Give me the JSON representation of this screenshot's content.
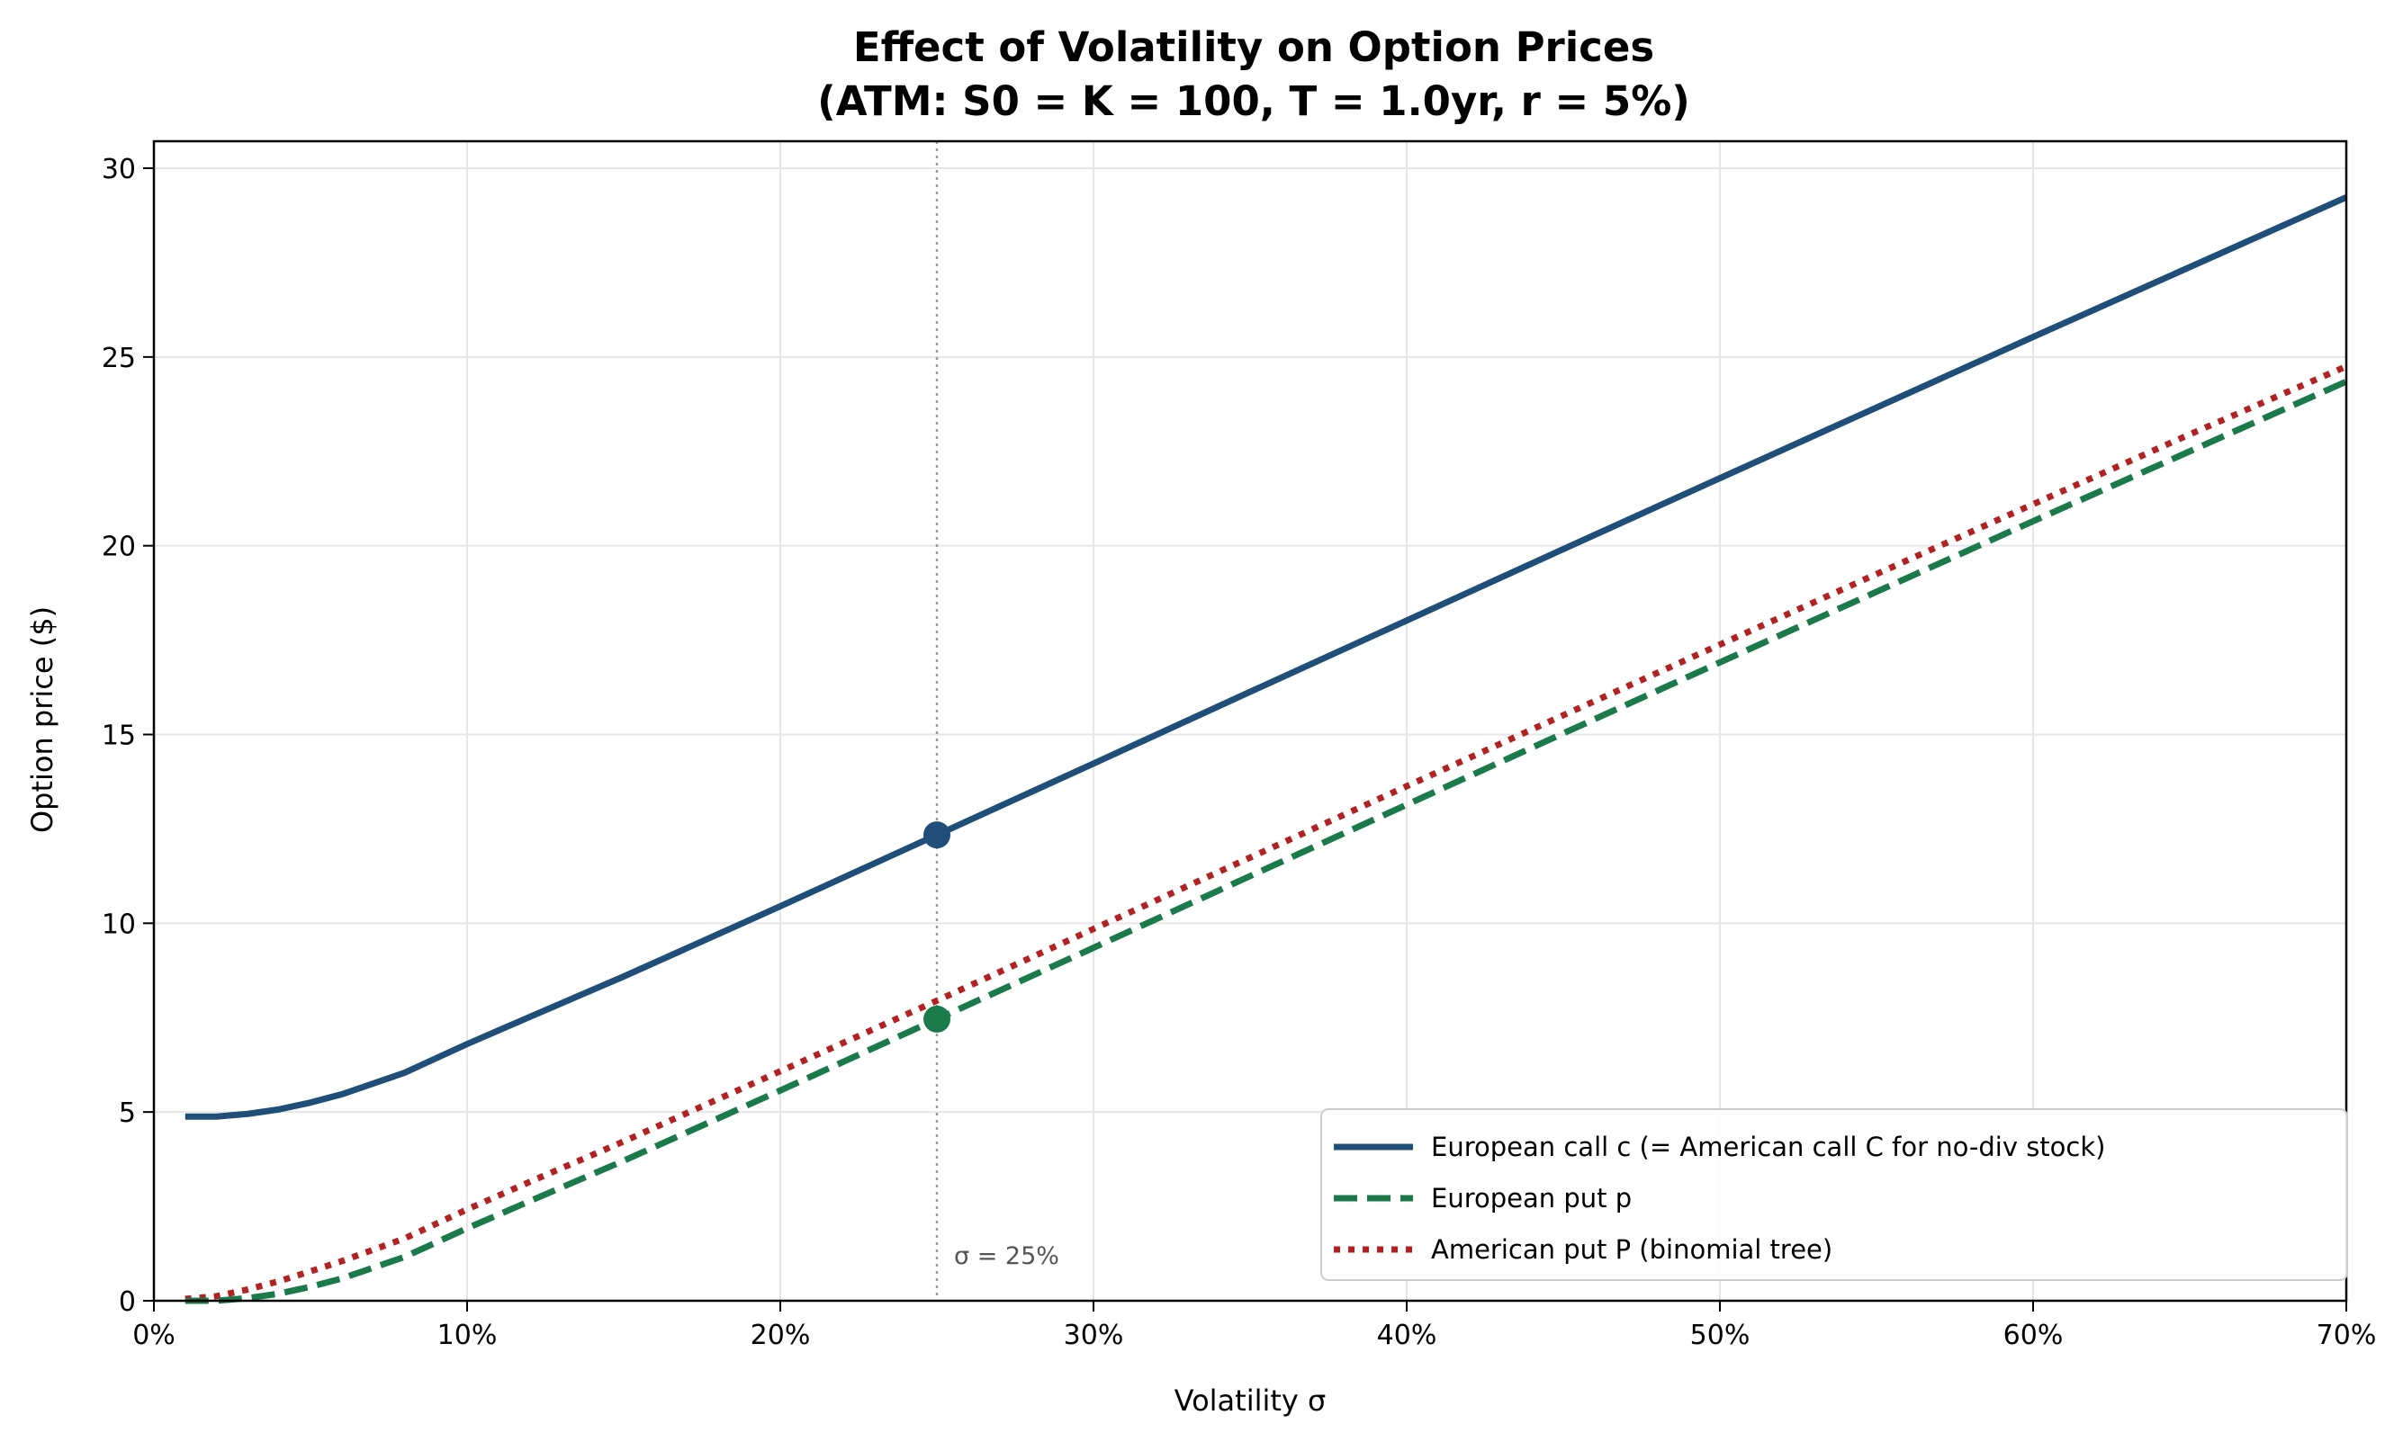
{
  "chart_data": {
    "type": "line",
    "title": "Effect of Volatility on Option Prices",
    "subtitle": "(ATM: S0 = K = 100,  T = 1.0yr,  r = 5%)",
    "xlabel": "Volatility  σ",
    "ylabel": "Option price ($)",
    "xlim": [
      0,
      70
    ],
    "ylim": [
      0,
      30
    ],
    "x_unit": "%",
    "grid": true,
    "legend_placement": "lower-right",
    "xticks": [
      "0%",
      "10%",
      "20%",
      "30%",
      "40%",
      "50%",
      "60%",
      "70%"
    ],
    "yticks": [
      "0",
      "5",
      "10",
      "15",
      "20",
      "25",
      "30"
    ],
    "x": [
      1,
      2,
      3,
      4,
      5,
      6,
      8,
      10,
      12,
      15,
      20,
      25,
      30,
      35,
      40,
      45,
      50,
      55,
      60,
      65,
      70
    ],
    "series": [
      {
        "name": "European call c  (= American call C for no-div stock)",
        "color": "#1f4e79",
        "style": "solid",
        "values": [
          4.88,
          4.88,
          4.95,
          5.07,
          5.25,
          5.47,
          6.04,
          6.8,
          7.52,
          8.59,
          10.45,
          12.34,
          14.23,
          16.13,
          18.02,
          19.91,
          21.79,
          23.66,
          25.53,
          27.38,
          29.23
        ]
      },
      {
        "name": "European put p",
        "color": "#1a7a4a",
        "style": "dashed",
        "values": [
          0.0,
          0.0,
          0.07,
          0.19,
          0.37,
          0.59,
          1.16,
          1.92,
          2.64,
          3.71,
          5.57,
          7.46,
          9.35,
          11.25,
          13.14,
          15.03,
          16.91,
          18.78,
          20.65,
          22.5,
          24.35
        ]
      },
      {
        "name": "American put P  (binomial tree)",
        "color": "#b22222",
        "style": "dotted",
        "values": [
          0.05,
          0.12,
          0.3,
          0.52,
          0.78,
          1.05,
          1.65,
          2.42,
          3.15,
          4.22,
          6.08,
          7.95,
          9.85,
          11.74,
          13.63,
          15.51,
          17.38,
          19.25,
          21.1,
          22.95,
          24.75
        ]
      }
    ],
    "markers": [
      {
        "x": 25,
        "y": 12.34,
        "color": "#1f4e79"
      },
      {
        "x": 25,
        "y": 7.46,
        "color": "#1a7a4a"
      }
    ],
    "vline": {
      "x": 25,
      "label": "σ = 25%"
    }
  }
}
